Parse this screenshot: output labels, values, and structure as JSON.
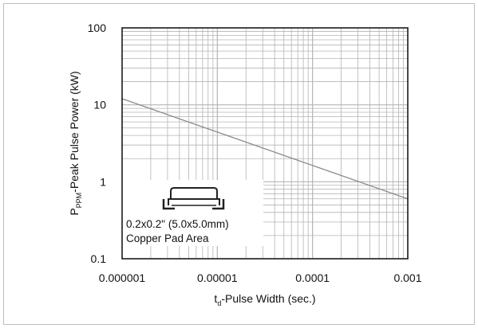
{
  "chart_data": {
    "type": "line",
    "x_scale": "log",
    "y_scale": "log",
    "xlim": [
      1e-06,
      0.001
    ],
    "ylim": [
      0.1,
      100
    ],
    "x_ticks": [
      "0.000001",
      "0.00001",
      "0.0001",
      "0.001"
    ],
    "y_ticks": [
      "100",
      "10",
      "1",
      "0.1"
    ],
    "xlabel": {
      "main": "t",
      "sub": "d",
      "rest": "-Pulse Width (sec.)"
    },
    "ylabel": {
      "main": "P",
      "sub": "PPM",
      "rest": "-Peak Pulse Power (kW)"
    },
    "grid": true,
    "series": [
      {
        "x": [
          1e-06,
          0.001
        ],
        "y": [
          12,
          0.6
        ]
      }
    ],
    "annotation": {
      "line1": "0.2x0.2\" (5.0x5.0mm)",
      "line2": "Copper Pad Area"
    },
    "colors": {
      "line": "#8a8a8a",
      "grid": "#b4b4b4",
      "frame": "#1a1a1a"
    }
  }
}
